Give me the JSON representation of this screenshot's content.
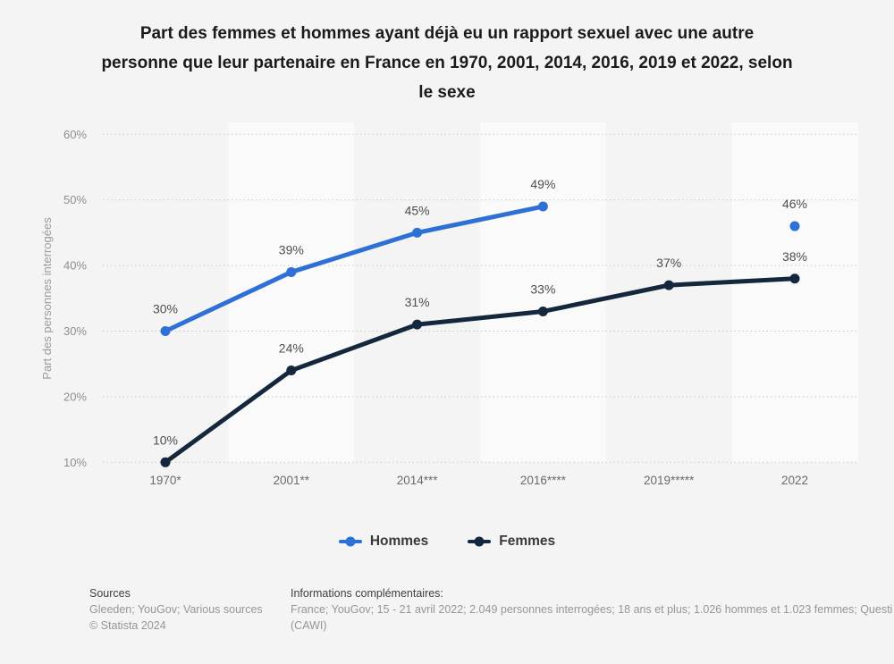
{
  "title_lines": [
    "Part des femmes et hommes ayant déjà eu un rapport sexuel avec une autre",
    "personne que leur partenaire en France en 1970, 2001, 2014, 2016, 2019 et 2022, selon",
    "le sexe"
  ],
  "chart_data": {
    "type": "line",
    "title": "Part des femmes et hommes ayant déjà eu un rapport sexuel avec une autre personne que leur partenaire en France en 1970, 2001, 2014, 2016, 2019 et 2022, selon le sexe",
    "categories": [
      "1970*",
      "2001**",
      "2014***",
      "2016****",
      "2019*****",
      "2022"
    ],
    "series": [
      {
        "name": "Hommes",
        "color": "#2e70d6",
        "values": [
          30,
          39,
          45,
          49,
          null,
          46
        ]
      },
      {
        "name": "Femmes",
        "color": "#14273d",
        "values": [
          10,
          24,
          31,
          33,
          37,
          38
        ]
      }
    ],
    "xlabel": "",
    "ylabel": "Part des personnes interrogées",
    "yticks": [
      "10%",
      "20%",
      "30%",
      "40%",
      "50%",
      "60%"
    ],
    "ylim": [
      10,
      60
    ],
    "grid": "horizontal-dotted",
    "legend_position": "bottom",
    "data_label_suffix": "%"
  },
  "footer": {
    "sources_label": "Sources",
    "sources_line": "Gleeden; YouGov; Various sources",
    "copyright": "© Statista 2024",
    "info_label": "Informations complémentaires:",
    "info_line1": "France; YouGov; 15 - 21 avril 2022; 2.049 personnes interrogées; 18 ans et plus; 1.026 hommes et 1.023 femmes; Questi",
    "info_line2": "(CAWI)"
  }
}
